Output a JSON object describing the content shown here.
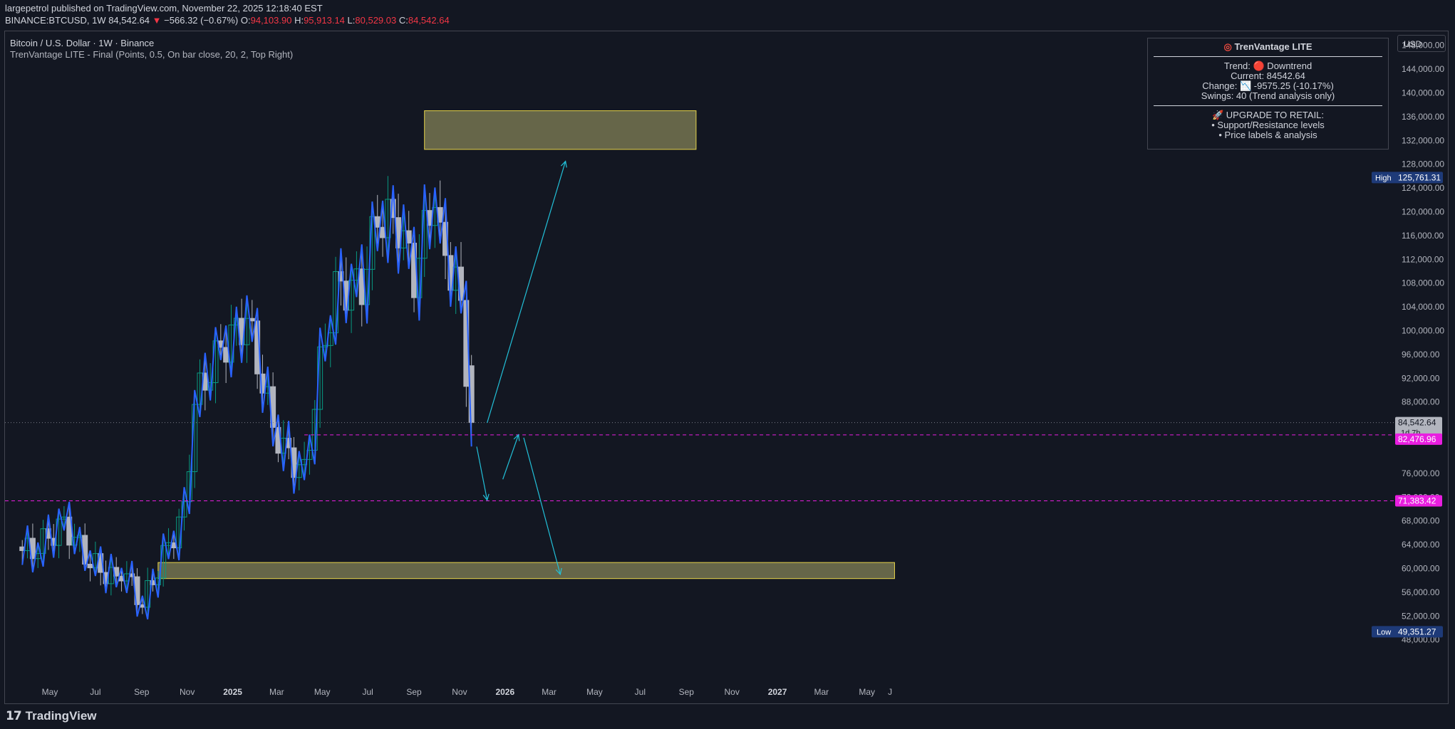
{
  "header": {
    "line1": "largepetrol published on TradingView.com, November 22, 2025 12:18:40 EST",
    "symbol": "BINANCE:BTCUSD, 1W",
    "last": "84,542.64",
    "arrow": "▼",
    "change": "−566.32 (−0.67%)",
    "o_label": "O:",
    "o_value": "94,103.90",
    "h_label": "H:",
    "h_value": "95,913.14",
    "l_label": "L:",
    "l_value": "80,529.03",
    "c_label": "C:",
    "c_value": "84,542.64"
  },
  "chart_title": "Bitcoin / U.S. Dollar · 1W · Binance",
  "indicator_line": "TrenVantage LITE - Final (Points, 0.5, On bar close, 20, 2, Top Right)",
  "currency_button": "USD",
  "info_box": {
    "title": "TrenVantage LITE",
    "trend": "Trend: 🔴 Downtrend",
    "current": "Current: 84542.64",
    "change": "Change: 📉 -9575.25 (-10.17%)",
    "swings": "Swings: 40 (Trend analysis only)",
    "upgrade": "🚀 UPGRADE TO RETAIL:",
    "bullet1": "• Support/Resistance levels",
    "bullet2": "• Price labels & analysis"
  },
  "price_labels": {
    "high_tag": "High",
    "high_value": "125,761.31",
    "low_tag": "Low",
    "low_value": "49,351.27",
    "last_value": "84,542.64",
    "countdown": "1d 7h",
    "magenta_upper": "82,476.96",
    "magenta_lower": "71,383.42"
  },
  "footer": {
    "brand": "TradingView"
  },
  "colors": {
    "background": "#131722",
    "up_candle": "#089981",
    "down_candle": "#b2b5be",
    "swing_line": "#2962ff",
    "projection": "#22c0d8",
    "zone_fill": "#706f4e",
    "zone_border": "#e6d34a",
    "magenta": "#e91ee0",
    "high_low_tag": "#1e3a78"
  },
  "chart_data": {
    "type": "candlestick",
    "title": "Bitcoin / U.S. Dollar · 1W · Binance",
    "timeframe": "1W",
    "y_axis": {
      "ticks": [
        "148,000.00",
        "144,000.00",
        "140,000.00",
        "136,000.00",
        "132,000.00",
        "128,000.00",
        "124,000.00",
        "120,000.00",
        "116,000.00",
        "112,000.00",
        "108,000.00",
        "104,000.00",
        "100,000.00",
        "96,000.00",
        "92,000.00",
        "88,000.00",
        "76,000.00",
        "72,000.00",
        "68,000.00",
        "64,000.00",
        "60,000.00",
        "56,000.00",
        "52,000.00",
        "48,000.00"
      ],
      "range": [
        47000,
        152000
      ]
    },
    "x_axis": {
      "ticks": [
        "May",
        "Jul",
        "Sep",
        "Nov",
        "2025",
        "Mar",
        "May",
        "Jul",
        "Sep",
        "Nov",
        "2026",
        "Mar",
        "May",
        "Jul",
        "Sep",
        "Nov",
        "2027",
        "Mar",
        "May",
        "J"
      ],
      "bold": [
        "2025",
        "2026",
        "2027"
      ]
    },
    "close_path_points": [
      [
        "2024-04-08",
        63000
      ],
      [
        "2024-05-20",
        67500
      ],
      [
        "2024-06-24",
        61000
      ],
      [
        "2024-07-29",
        58000
      ],
      [
        "2024-08-05",
        60000
      ],
      [
        "2024-09-02",
        54000
      ],
      [
        "2024-09-30",
        62000
      ],
      [
        "2024-10-28",
        69500
      ],
      [
        "2024-11-11",
        88000
      ],
      [
        "2024-12-16",
        97000
      ],
      [
        "2025-01-20",
        102000
      ],
      [
        "2025-02-24",
        84000
      ],
      [
        "2025-03-10",
        80000
      ],
      [
        "2025-04-07",
        76000
      ],
      [
        "2025-04-28",
        94000
      ],
      [
        "2025-05-19",
        107000
      ],
      [
        "2025-06-23",
        107500
      ],
      [
        "2025-07-14",
        119000
      ],
      [
        "2025-08-11",
        118000
      ],
      [
        "2025-09-01",
        109000
      ],
      [
        "2025-09-29",
        123500
      ],
      [
        "2025-10-06",
        114500
      ],
      [
        "2025-10-27",
        108500
      ],
      [
        "2025-11-03",
        103000
      ],
      [
        "2025-11-17",
        84542.64
      ]
    ],
    "high": 125761.31,
    "low": 49351.27,
    "last_close": 84542.64,
    "horizontal_levels": [
      {
        "label": "82,476.96",
        "price": 82476.96,
        "style": "dashed",
        "color": "#e91ee0"
      },
      {
        "label": "71,383.42",
        "price": 71383.42,
        "style": "dashed",
        "color": "#e91ee0"
      }
    ],
    "zones": [
      {
        "from": "2025-09-15",
        "to": "2026-09-14",
        "bottom": 130500,
        "top": 137000
      },
      {
        "from": "2024-09-23",
        "to": "2027-06-07",
        "bottom": 58300,
        "top": 61000
      }
    ],
    "projections": [
      {
        "from": [
          "2025-12-08",
          84500
        ],
        "to": [
          "2026-03-23",
          128500
        ]
      },
      {
        "from": [
          "2025-11-24",
          80500
        ],
        "to": [
          "2025-12-08",
          71500
        ]
      },
      {
        "from": [
          "2025-12-29",
          75000
        ],
        "to": [
          "2026-01-19",
          82500
        ]
      },
      {
        "from": [
          "2026-01-26",
          82000
        ],
        "to": [
          "2026-03-16",
          59000
        ]
      }
    ]
  }
}
